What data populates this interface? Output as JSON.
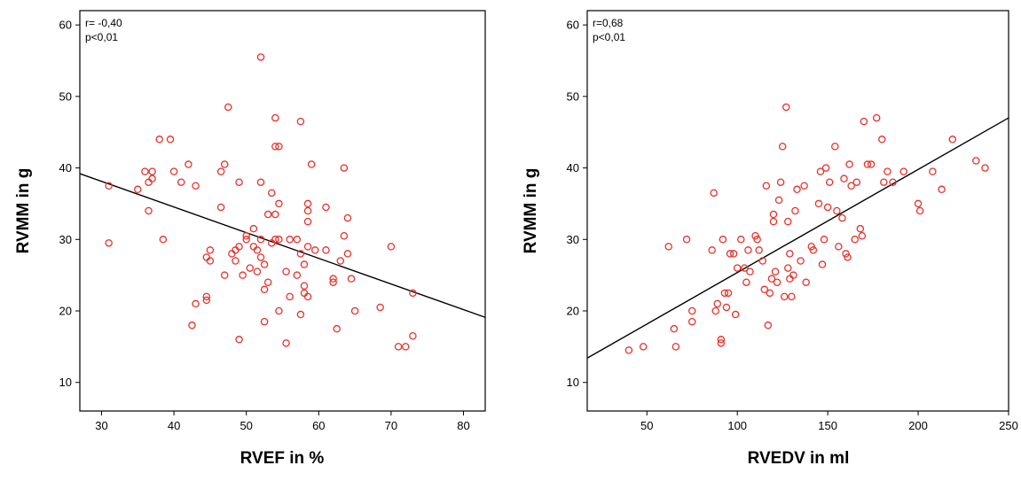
{
  "chart_data": [
    {
      "type": "scatter",
      "xlabel": "RVEF in %",
      "ylabel": "RVMM in g",
      "xlim": [
        27,
        83
      ],
      "ylim": [
        6,
        62
      ],
      "xticks": [
        30,
        40,
        50,
        60,
        70,
        80
      ],
      "yticks": [
        10,
        20,
        30,
        40,
        50,
        60
      ],
      "annotation": [
        "r= -0,40",
        "p<0,01"
      ],
      "point_color": "#e8312a",
      "line_color": "#000000",
      "grid": false,
      "fit_line": {
        "x": [
          27,
          83
        ],
        "y": [
          39.2,
          19.1
        ]
      },
      "points": [
        [
          31,
          37.5
        ],
        [
          31,
          29.5
        ],
        [
          35,
          37
        ],
        [
          36,
          39.5
        ],
        [
          36.5,
          38
        ],
        [
          36.5,
          34
        ],
        [
          37,
          39.5
        ],
        [
          37,
          38.5
        ],
        [
          38,
          44
        ],
        [
          38.5,
          30
        ],
        [
          39.5,
          44
        ],
        [
          40,
          39.5
        ],
        [
          41,
          38
        ],
        [
          42,
          40.5
        ],
        [
          43,
          37.5
        ],
        [
          42.5,
          18
        ],
        [
          43,
          21
        ],
        [
          44.5,
          22
        ],
        [
          44.5,
          21.5
        ],
        [
          44.5,
          27.5
        ],
        [
          45,
          27
        ],
        [
          45,
          28.5
        ],
        [
          46.5,
          39.5
        ],
        [
          46.5,
          34.5
        ],
        [
          47,
          40.5
        ],
        [
          47,
          25
        ],
        [
          47.5,
          48.5
        ],
        [
          48,
          28
        ],
        [
          48.5,
          27
        ],
        [
          48.5,
          28.5
        ],
        [
          49,
          38
        ],
        [
          49,
          29
        ],
        [
          49,
          16
        ],
        [
          49.5,
          25
        ],
        [
          50,
          30
        ],
        [
          50,
          30.5
        ],
        [
          50.5,
          26
        ],
        [
          51,
          31.5
        ],
        [
          51,
          29
        ],
        [
          51.5,
          28.5
        ],
        [
          51.5,
          25.5
        ],
        [
          52,
          55.5
        ],
        [
          52,
          38
        ],
        [
          52,
          30
        ],
        [
          52,
          27.5
        ],
        [
          52.5,
          26.5
        ],
        [
          52.5,
          23
        ],
        [
          52.5,
          18.5
        ],
        [
          53,
          33.5
        ],
        [
          53,
          24
        ],
        [
          53.5,
          29.5
        ],
        [
          53.5,
          36.5
        ],
        [
          54,
          47
        ],
        [
          54,
          43
        ],
        [
          54,
          33.5
        ],
        [
          54,
          30
        ],
        [
          54.5,
          43
        ],
        [
          54.5,
          35
        ],
        [
          54.5,
          30
        ],
        [
          54.5,
          20
        ],
        [
          55.5,
          25.5
        ],
        [
          55.5,
          15.5
        ],
        [
          56,
          22
        ],
        [
          56,
          30
        ],
        [
          57,
          30
        ],
        [
          57,
          25
        ],
        [
          57.5,
          46.5
        ],
        [
          57.5,
          19.5
        ],
        [
          57.5,
          28
        ],
        [
          58,
          23.5
        ],
        [
          58,
          22.5
        ],
        [
          58,
          26.5
        ],
        [
          58.5,
          35
        ],
        [
          58.5,
          34
        ],
        [
          58.5,
          32.5
        ],
        [
          58.5,
          29
        ],
        [
          58.5,
          22
        ],
        [
          59,
          40.5
        ],
        [
          59.5,
          28.5
        ],
        [
          61,
          34.5
        ],
        [
          61,
          28.5
        ],
        [
          62,
          24.5
        ],
        [
          62,
          24
        ],
        [
          62.5,
          17.5
        ],
        [
          63,
          27
        ],
        [
          63.5,
          40
        ],
        [
          63.5,
          30.5
        ],
        [
          64,
          33
        ],
        [
          64,
          28
        ],
        [
          64.5,
          24.5
        ],
        [
          65,
          20
        ],
        [
          68.5,
          20.5
        ],
        [
          70,
          29
        ],
        [
          71,
          15
        ],
        [
          72,
          15
        ],
        [
          73,
          22.5
        ],
        [
          73,
          16.5
        ]
      ]
    },
    {
      "type": "scatter",
      "xlabel": "RVEDV in ml",
      "ylabel": "RVMM in g",
      "xlim": [
        17,
        250
      ],
      "ylim": [
        6,
        62
      ],
      "xticks": [
        50,
        100,
        150,
        200,
        250
      ],
      "yticks": [
        10,
        20,
        30,
        40,
        50,
        60
      ],
      "annotation": [
        "r=0,68",
        "p<0,01"
      ],
      "point_color": "#e8312a",
      "line_color": "#000000",
      "grid": false,
      "fit_line": {
        "x": [
          17,
          250
        ],
        "y": [
          13.4,
          47
        ]
      },
      "points": [
        [
          40,
          14.5
        ],
        [
          48,
          15
        ],
        [
          62,
          29
        ],
        [
          65,
          17.5
        ],
        [
          66,
          15
        ],
        [
          72,
          30
        ],
        [
          75,
          20
        ],
        [
          75,
          18.5
        ],
        [
          86,
          28.5
        ],
        [
          87,
          36.5
        ],
        [
          88,
          20
        ],
        [
          89,
          21
        ],
        [
          91,
          16
        ],
        [
          91,
          15.5
        ],
        [
          92,
          30
        ],
        [
          93,
          22.5
        ],
        [
          94,
          20.5
        ],
        [
          95,
          22.5
        ],
        [
          96,
          28
        ],
        [
          98,
          28
        ],
        [
          99,
          19.5
        ],
        [
          100,
          26
        ],
        [
          102,
          30
        ],
        [
          104,
          26
        ],
        [
          105,
          24
        ],
        [
          106,
          28.5
        ],
        [
          107,
          25.5
        ],
        [
          110,
          30.5
        ],
        [
          111,
          30
        ],
        [
          112,
          28.5
        ],
        [
          114,
          27
        ],
        [
          115,
          23
        ],
        [
          116,
          37.5
        ],
        [
          117,
          18
        ],
        [
          118,
          22.5
        ],
        [
          119,
          24.5
        ],
        [
          120,
          33.5
        ],
        [
          120,
          32.5
        ],
        [
          121,
          25.5
        ],
        [
          122,
          24
        ],
        [
          123,
          35.5
        ],
        [
          124,
          38
        ],
        [
          125,
          43
        ],
        [
          126,
          22
        ],
        [
          127,
          48.5
        ],
        [
          128,
          32.5
        ],
        [
          128,
          26
        ],
        [
          129,
          28
        ],
        [
          129,
          24.5
        ],
        [
          130,
          22
        ],
        [
          131,
          25
        ],
        [
          132,
          34
        ],
        [
          133,
          37
        ],
        [
          135,
          27
        ],
        [
          137,
          37.5
        ],
        [
          138,
          24
        ],
        [
          141,
          29
        ],
        [
          142,
          28.5
        ],
        [
          145,
          35
        ],
        [
          146,
          39.5
        ],
        [
          147,
          26.5
        ],
        [
          148,
          30
        ],
        [
          149,
          40
        ],
        [
          150,
          34.5
        ],
        [
          151,
          38
        ],
        [
          154,
          43
        ],
        [
          155,
          34
        ],
        [
          156,
          29
        ],
        [
          158,
          33
        ],
        [
          159,
          38.5
        ],
        [
          160,
          28
        ],
        [
          161,
          27.5
        ],
        [
          162,
          40.5
        ],
        [
          163,
          37.5
        ],
        [
          165,
          30
        ],
        [
          166,
          38
        ],
        [
          168,
          31.5
        ],
        [
          169,
          30.5
        ],
        [
          170,
          46.5
        ],
        [
          172,
          40.5
        ],
        [
          174,
          40.5
        ],
        [
          177,
          47
        ],
        [
          180,
          44
        ],
        [
          181,
          38
        ],
        [
          183,
          39.5
        ],
        [
          186,
          38
        ],
        [
          192,
          39.5
        ],
        [
          200,
          35
        ],
        [
          201,
          34
        ],
        [
          208,
          39.5
        ],
        [
          213,
          37
        ],
        [
          219,
          44
        ],
        [
          232,
          41
        ],
        [
          237,
          40
        ]
      ]
    }
  ]
}
